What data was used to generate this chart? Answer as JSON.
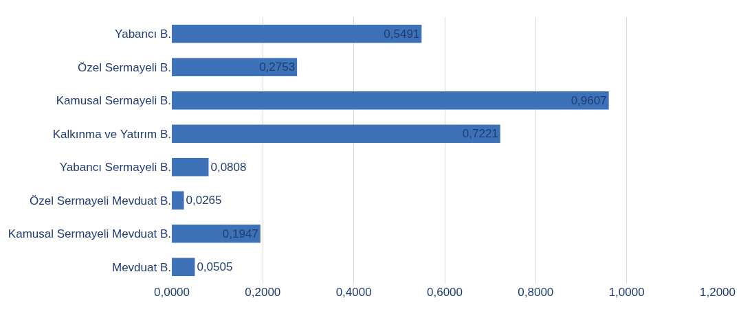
{
  "chart_data": {
    "type": "bar",
    "orientation": "horizontal",
    "categories": [
      "Yabancı B.",
      "Özel Sermayeli B.",
      "Kamusal Sermayeli B.",
      "Kalkınma ve Yatırım B.",
      "Yabancı Sermayeli B.",
      "Özel Sermayeli Mevduat B.",
      "Kamusal Sermayeli Mevduat B.",
      "Mevduat B."
    ],
    "values": [
      0.5491,
      0.2753,
      0.9607,
      0.7221,
      0.0808,
      0.0265,
      0.1947,
      0.0505
    ],
    "value_labels": [
      "0,5491",
      "0,2753",
      "0,9607",
      "0,7221",
      "0,0808",
      "0,0265",
      "0,1947",
      "0,0505"
    ],
    "color": "#3d72b8",
    "xlim": [
      0,
      1.2
    ],
    "xticks": [
      {
        "value": 0,
        "label": "0,0000"
      },
      {
        "value": 0.2,
        "label": "0,2000"
      },
      {
        "value": 0.4,
        "label": "0,4000"
      },
      {
        "value": 0.6,
        "label": "0,6000"
      },
      {
        "value": 0.8,
        "label": "0,8000"
      },
      {
        "value": 1.0,
        "label": "1,0000"
      },
      {
        "value": 1.2,
        "label": "1,2000"
      }
    ],
    "grid": "x",
    "legend": false
  }
}
